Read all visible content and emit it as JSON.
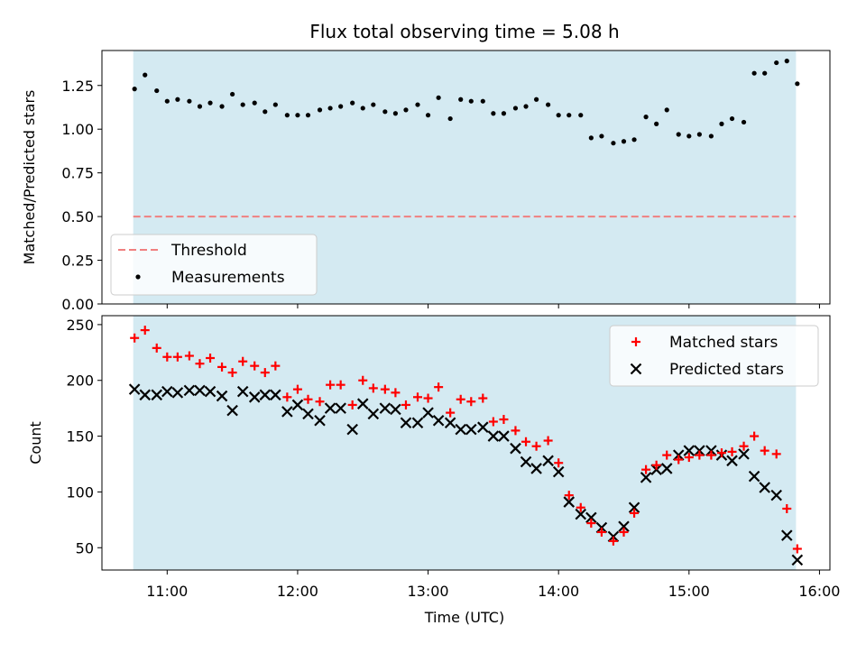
{
  "title": "Flux total observing time = 5.08 h",
  "colors": {
    "band": "#add8e6",
    "threshold": "#f08080",
    "matched": "#ff0000",
    "predicted": "#000000",
    "measurement": "#000000"
  },
  "chart_data": [
    {
      "type": "scatter",
      "title": "Flux total observing time = 5.08 h",
      "ylabel": "Matched/Predicted stars",
      "xlabel": "",
      "x_unit": "hours UTC",
      "xlim": [
        10.5,
        16.08
      ],
      "ylim": [
        0,
        1.45
      ],
      "yticks": [
        0.0,
        0.25,
        0.5,
        0.75,
        1.0,
        1.25
      ],
      "ytick_labels": [
        "0.00",
        "0.25",
        "0.50",
        "0.75",
        "1.00",
        "1.25"
      ],
      "band": [
        10.74,
        15.82
      ],
      "threshold": 0.5,
      "legend_position": "lower-left",
      "legend": [
        "Threshold",
        "Measurements"
      ],
      "series": [
        {
          "name": "Measurements",
          "x": [
            10.75,
            10.83,
            10.92,
            11.0,
            11.08,
            11.17,
            11.25,
            11.33,
            11.42,
            11.5,
            11.58,
            11.67,
            11.75,
            11.83,
            11.92,
            12.0,
            12.08,
            12.17,
            12.25,
            12.33,
            12.42,
            12.5,
            12.58,
            12.67,
            12.75,
            12.83,
            12.92,
            13.0,
            13.08,
            13.17,
            13.25,
            13.33,
            13.42,
            13.5,
            13.58,
            13.67,
            13.75,
            13.83,
            13.92,
            14.0,
            14.08,
            14.17,
            14.25,
            14.33,
            14.42,
            14.5,
            14.58,
            14.67,
            14.75,
            14.83,
            14.92,
            15.0,
            15.08,
            15.17,
            15.25,
            15.33,
            15.42,
            15.5,
            15.58,
            15.67,
            15.75,
            15.83
          ],
          "y": [
            1.23,
            1.31,
            1.22,
            1.16,
            1.17,
            1.16,
            1.13,
            1.15,
            1.13,
            1.2,
            1.14,
            1.15,
            1.1,
            1.14,
            1.08,
            1.08,
            1.08,
            1.11,
            1.12,
            1.13,
            1.15,
            1.12,
            1.14,
            1.1,
            1.09,
            1.11,
            1.14,
            1.08,
            1.18,
            1.06,
            1.17,
            1.16,
            1.16,
            1.09,
            1.09,
            1.12,
            1.13,
            1.17,
            1.14,
            1.08,
            1.08,
            1.08,
            0.95,
            0.96,
            0.92,
            0.93,
            0.94,
            1.07,
            1.03,
            1.11,
            0.97,
            0.96,
            0.97,
            0.96,
            1.03,
            1.06,
            1.04,
            1.32,
            1.32,
            1.38,
            1.39,
            1.26
          ]
        }
      ]
    },
    {
      "type": "scatter",
      "title": "",
      "ylabel": "Count",
      "xlabel": "Time (UTC)",
      "x_unit": "hours UTC",
      "xlim": [
        10.5,
        16.08
      ],
      "ylim": [
        30,
        258
      ],
      "yticks": [
        50,
        100,
        150,
        200,
        250
      ],
      "ytick_labels": [
        "50",
        "100",
        "150",
        "200",
        "250"
      ],
      "xticks": [
        11,
        12,
        13,
        14,
        15,
        16
      ],
      "xtick_labels": [
        "11:00",
        "12:00",
        "13:00",
        "14:00",
        "15:00",
        "16:00"
      ],
      "band": [
        10.74,
        15.82
      ],
      "legend_position": "top-right",
      "legend": [
        "Matched stars",
        "Predicted stars"
      ],
      "series": [
        {
          "name": "Matched stars",
          "marker": "+",
          "x": [
            10.75,
            10.83,
            10.92,
            11.0,
            11.08,
            11.17,
            11.25,
            11.33,
            11.42,
            11.5,
            11.58,
            11.67,
            11.75,
            11.83,
            11.92,
            12.0,
            12.08,
            12.17,
            12.25,
            12.33,
            12.42,
            12.5,
            12.58,
            12.67,
            12.75,
            12.83,
            12.92,
            13.0,
            13.08,
            13.17,
            13.25,
            13.33,
            13.42,
            13.5,
            13.58,
            13.67,
            13.75,
            13.83,
            13.92,
            14.0,
            14.08,
            14.17,
            14.25,
            14.33,
            14.42,
            14.5,
            14.58,
            14.67,
            14.75,
            14.83,
            14.92,
            15.0,
            15.08,
            15.17,
            15.25,
            15.33,
            15.42,
            15.5,
            15.58,
            15.67,
            15.75,
            15.83
          ],
          "y": [
            238,
            245,
            229,
            221,
            221,
            222,
            215,
            220,
            212,
            207,
            217,
            213,
            207,
            213,
            185,
            192,
            183,
            181,
            196,
            196,
            178,
            200,
            193,
            192,
            189,
            178,
            185,
            184,
            194,
            171,
            183,
            181,
            184,
            163,
            165,
            155,
            145,
            141,
            146,
            126,
            97,
            86,
            72,
            64,
            56,
            64,
            81,
            120,
            124,
            133,
            129,
            131,
            133,
            133,
            135,
            136,
            141,
            150,
            137,
            134,
            85,
            49
          ]
        },
        {
          "name": "Predicted stars",
          "marker": "x",
          "x": [
            10.75,
            10.83,
            10.92,
            11.0,
            11.08,
            11.17,
            11.25,
            11.33,
            11.42,
            11.5,
            11.58,
            11.67,
            11.75,
            11.83,
            11.92,
            12.0,
            12.08,
            12.17,
            12.25,
            12.33,
            12.42,
            12.5,
            12.58,
            12.67,
            12.75,
            12.83,
            12.92,
            13.0,
            13.08,
            13.17,
            13.25,
            13.33,
            13.42,
            13.5,
            13.58,
            13.67,
            13.75,
            13.83,
            13.92,
            14.0,
            14.08,
            14.17,
            14.25,
            14.33,
            14.42,
            14.5,
            14.58,
            14.67,
            14.75,
            14.83,
            14.92,
            15.0,
            15.08,
            15.17,
            15.25,
            15.33,
            15.42,
            15.5,
            15.58,
            15.67,
            15.75,
            15.83
          ],
          "y": [
            192,
            187,
            187,
            190,
            189,
            191,
            191,
            190,
            186,
            173,
            190,
            185,
            187,
            187,
            172,
            178,
            170,
            164,
            175,
            175,
            156,
            179,
            170,
            175,
            174,
            162,
            162,
            171,
            164,
            162,
            156,
            156,
            158,
            150,
            150,
            139,
            127,
            121,
            128,
            118,
            91,
            80,
            77,
            68,
            60,
            69,
            86,
            113,
            120,
            121,
            133,
            137,
            137,
            137,
            133,
            128,
            134,
            114,
            104,
            97,
            61,
            39
          ]
        }
      ]
    }
  ]
}
